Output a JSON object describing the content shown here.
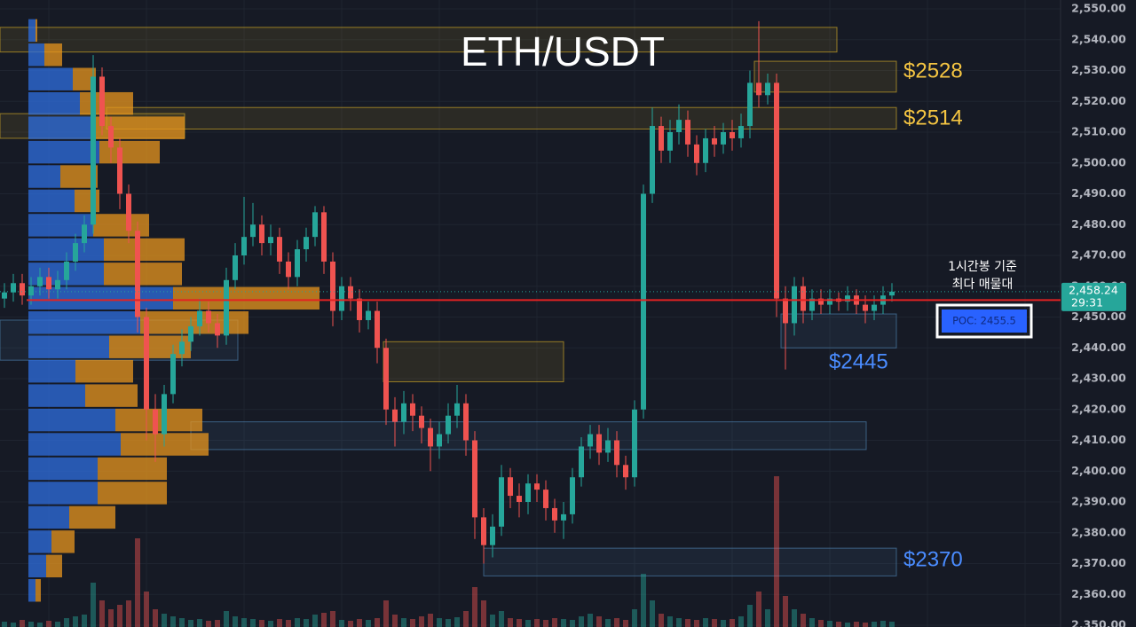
{
  "chart_data": {
    "type": "candlestick",
    "title": "ETH/USDT",
    "up_color": "#26a69a",
    "down_color": "#ef5350",
    "ylim": [
      2350,
      2550
    ],
    "yticks": [
      {
        "value": 2350,
        "label": "2,350.00"
      },
      {
        "value": 2360,
        "label": "2,360.00"
      },
      {
        "value": 2370,
        "label": "2,370.00"
      },
      {
        "value": 2380,
        "label": "2,380.00"
      },
      {
        "value": 2390,
        "label": "2,390.00"
      },
      {
        "value": 2400,
        "label": "2,400.00"
      },
      {
        "value": 2410,
        "label": "2,410.00"
      },
      {
        "value": 2420,
        "label": "2,420.00"
      },
      {
        "value": 2430,
        "label": "2,430.00"
      },
      {
        "value": 2440,
        "label": "2,440.00"
      },
      {
        "value": 2450,
        "label": "2,450.00"
      },
      {
        "value": 2460,
        "label": "2,460.00"
      },
      {
        "value": 2470,
        "label": "2,470.00"
      },
      {
        "value": 2480,
        "label": "2,480.00"
      },
      {
        "value": 2490,
        "label": "2,490.00"
      },
      {
        "value": 2500,
        "label": "2,500.00"
      },
      {
        "value": 2510,
        "label": "2,510.00"
      },
      {
        "value": 2520,
        "label": "2,520.00"
      },
      {
        "value": 2530,
        "label": "2,530.00"
      },
      {
        "value": 2540,
        "label": "2,540.00"
      },
      {
        "value": 2550,
        "label": "2,550.00"
      }
    ],
    "grid": true,
    "open": [
      2456,
      2458,
      2461,
      2457,
      2460,
      2463,
      2459,
      2462,
      2468,
      2474,
      2480,
      2528,
      2512,
      2505,
      2490,
      2478,
      2450,
      2420,
      2412,
      2425,
      2438,
      2442,
      2447,
      2452,
      2448,
      2444,
      2462,
      2470,
      2476,
      2480,
      2474,
      2476,
      2468,
      2463,
      2472,
      2476,
      2484,
      2468,
      2452,
      2460,
      2456,
      2449,
      2452,
      2440,
      2420,
      2416,
      2422,
      2418,
      2414,
      2408,
      2412,
      2418,
      2422,
      2410,
      2385,
      2376,
      2382,
      2398,
      2392,
      2390,
      2396,
      2394,
      2388,
      2384,
      2386,
      2398,
      2408,
      2412,
      2406,
      2410,
      2402,
      2398,
      2420,
      2490,
      2512,
      2504,
      2510,
      2514,
      2506,
      2500,
      2508,
      2506,
      2510,
      2508,
      2512,
      2526,
      2522,
      2526,
      2456,
      2448,
      2460,
      2452,
      2456,
      2454,
      2456,
      2455,
      2457,
      2454,
      2452,
      2454,
      2457
    ],
    "high": [
      2461,
      2464,
      2464,
      2463,
      2466,
      2466,
      2465,
      2471,
      2477,
      2483,
      2535,
      2531,
      2515,
      2508,
      2493,
      2481,
      2453,
      2425,
      2428,
      2441,
      2446,
      2450,
      2456,
      2455,
      2451,
      2466,
      2474,
      2489,
      2487,
      2483,
      2480,
      2479,
      2471,
      2475,
      2479,
      2486,
      2486,
      2471,
      2463,
      2463,
      2459,
      2455,
      2455,
      2443,
      2424,
      2426,
      2425,
      2421,
      2417,
      2416,
      2422,
      2428,
      2425,
      2413,
      2388,
      2386,
      2402,
      2401,
      2396,
      2399,
      2399,
      2397,
      2391,
      2390,
      2401,
      2411,
      2415,
      2415,
      2414,
      2413,
      2405,
      2423,
      2493,
      2518,
      2515,
      2514,
      2519,
      2517,
      2509,
      2511,
      2512,
      2513,
      2514,
      2516,
      2530,
      2546,
      2529,
      2529,
      2460,
      2463,
      2463,
      2459,
      2459,
      2459,
      2458,
      2460,
      2459,
      2457,
      2457,
      2460,
      2461
    ],
    "low": [
      2453,
      2455,
      2454,
      2454,
      2457,
      2456,
      2456,
      2459,
      2465,
      2471,
      2477,
      2509,
      2500,
      2485,
      2474,
      2445,
      2410,
      2403,
      2408,
      2422,
      2434,
      2439,
      2444,
      2445,
      2440,
      2441,
      2459,
      2467,
      2473,
      2470,
      2470,
      2464,
      2459,
      2460,
      2468,
      2473,
      2464,
      2447,
      2449,
      2452,
      2445,
      2446,
      2435,
      2415,
      2408,
      2412,
      2413,
      2409,
      2400,
      2404,
      2409,
      2414,
      2405,
      2378,
      2370,
      2372,
      2379,
      2388,
      2385,
      2386,
      2390,
      2384,
      2380,
      2378,
      2383,
      2395,
      2404,
      2402,
      2403,
      2398,
      2394,
      2395,
      2417,
      2487,
      2500,
      2500,
      2506,
      2502,
      2496,
      2497,
      2502,
      2503,
      2504,
      2505,
      2508,
      2518,
      2519,
      2450,
      2433,
      2444,
      2448,
      2449,
      2451,
      2451,
      2452,
      2452,
      2451,
      2448,
      2449,
      2451,
      2455
    ],
    "close": [
      2458,
      2461,
      2457,
      2460,
      2463,
      2459,
      2462,
      2468,
      2474,
      2480,
      2528,
      2512,
      2505,
      2490,
      2478,
      2450,
      2420,
      2412,
      2425,
      2438,
      2442,
      2447,
      2452,
      2448,
      2444,
      2462,
      2470,
      2476,
      2480,
      2474,
      2476,
      2468,
      2463,
      2472,
      2476,
      2484,
      2468,
      2452,
      2460,
      2456,
      2449,
      2452,
      2440,
      2420,
      2416,
      2422,
      2418,
      2414,
      2408,
      2412,
      2418,
      2422,
      2410,
      2385,
      2376,
      2382,
      2398,
      2392,
      2390,
      2396,
      2394,
      2388,
      2384,
      2386,
      2398,
      2408,
      2412,
      2406,
      2410,
      2402,
      2398,
      2420,
      2490,
      2512,
      2504,
      2510,
      2514,
      2506,
      2500,
      2508,
      2506,
      2510,
      2508,
      2512,
      2526,
      2522,
      2526,
      2456,
      2448,
      2460,
      2452,
      2456,
      2454,
      2456,
      2455,
      2457,
      2454,
      2452,
      2454,
      2457,
      2458.24
    ],
    "volume": [
      6,
      5,
      8,
      6,
      5,
      7,
      6,
      10,
      12,
      14,
      50,
      30,
      20,
      25,
      30,
      100,
      40,
      20,
      15,
      12,
      10,
      8,
      9,
      7,
      8,
      18,
      12,
      10,
      9,
      8,
      7,
      9,
      8,
      10,
      9,
      14,
      16,
      18,
      8,
      7,
      9,
      8,
      10,
      30,
      14,
      10,
      9,
      12,
      15,
      10,
      9,
      11,
      18,
      45,
      30,
      14,
      18,
      10,
      9,
      8,
      9,
      8,
      10,
      9,
      8,
      12,
      15,
      12,
      9,
      10,
      8,
      20,
      60,
      30,
      15,
      12,
      10,
      9,
      8,
      10,
      9,
      8,
      9,
      12,
      25,
      40,
      20,
      170,
      35,
      20,
      15,
      10,
      8,
      7,
      6,
      5,
      6,
      5,
      6,
      7,
      6
    ],
    "volume_profile": {
      "buy_color": "#2f6fe0",
      "sell_color": "#e8961e",
      "levels": [
        2543,
        2535.1,
        2527.2,
        2519.3,
        2511.4,
        2503.5,
        2495.6,
        2487.7,
        2479.8,
        2471.9,
        2464,
        2456.1,
        2448.2,
        2440.3,
        2432.4,
        2424.5,
        2416.6,
        2408.7,
        2400.8,
        2392.9,
        2385,
        2377.1,
        2369.2,
        2361.3
      ],
      "buy": [
        8,
        18,
        50,
        58,
        73,
        80,
        36,
        52,
        73,
        85,
        85,
        163,
        126,
        91,
        53,
        64,
        98,
        104,
        78,
        78,
        46,
        26,
        20,
        8
      ],
      "sell": [
        2,
        20,
        26,
        60,
        103,
        68,
        42,
        28,
        63,
        91,
        88,
        165,
        122,
        92,
        65,
        59,
        98,
        99,
        78,
        78,
        52,
        26,
        18,
        6
      ]
    },
    "zones": [
      {
        "from": 2536,
        "to": 2544,
        "color": "#c9a227"
      },
      {
        "from": 2523,
        "to": 2533,
        "color": "#c9a227"
      },
      {
        "from": 2511,
        "to": 2518,
        "color": "#c9a227"
      },
      {
        "from": 2508,
        "to": 2516,
        "color": "#c9a227"
      },
      {
        "from": 2436,
        "to": 2449,
        "color": "#4a7ca8"
      },
      {
        "from": 2429,
        "to": 2442,
        "color": "#c9a227"
      },
      {
        "from": 2407,
        "to": 2416,
        "color": "#4a7ca8"
      },
      {
        "from": 2440,
        "to": 2451,
        "color": "#4a7ca8"
      },
      {
        "from": 2366,
        "to": 2375,
        "color": "#4a7ca8"
      }
    ],
    "zone_labels": [
      {
        "label": "$2528",
        "color": "#f5c542"
      },
      {
        "label": "$2514",
        "color": "#f5c542"
      },
      {
        "label": "$2445",
        "color": "#4a8cff"
      },
      {
        "label": "$2370",
        "color": "#4a8cff"
      }
    ],
    "last_price": {
      "value": 2458.24,
      "label": "2,458.24"
    },
    "countdown": "29:31",
    "poc": {
      "value": 2455.5,
      "label": "POC: 2455.5",
      "color": "#e32222"
    },
    "note": [
      "1시간봉 기준",
      "최다 매물대"
    ]
  }
}
